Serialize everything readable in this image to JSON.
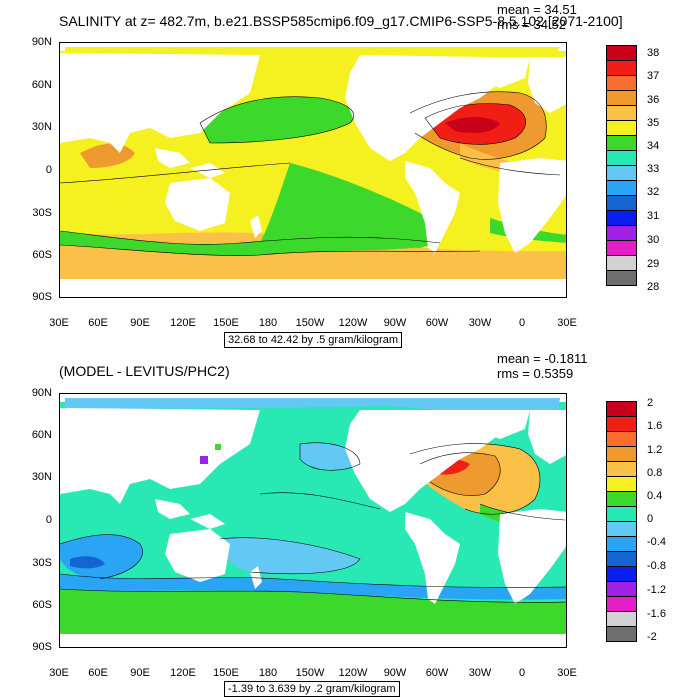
{
  "panel1": {
    "title": "SALINITY at z= 482.7m, b.e21.BSSP585cmip6.f09_g17.CMIP6-SSP5-8.5.102 [2071-2100]",
    "mean": "mean = 34.51",
    "rms": "rms = 34.52",
    "info": "32.68 to 42.42 by .5 gram/kilogram",
    "y_ticks": [
      "90N",
      "60N",
      "30N",
      "0",
      "30S",
      "60S",
      "90S"
    ],
    "x_ticks": [
      "30E",
      "60E",
      "90E",
      "120E",
      "150E",
      "180",
      "150W",
      "120W",
      "90W",
      "60W",
      "30W",
      "0",
      "30E"
    ],
    "colorbar": {
      "labels": [
        "38",
        "37",
        "36",
        "35",
        "34",
        "33",
        "32",
        "31",
        "30",
        "29",
        "28"
      ],
      "colors": [
        "#c8001a",
        "#f01e14",
        "#fa6e2d",
        "#ef9a2e",
        "#fac048",
        "#f5f020",
        "#3cd82b",
        "#28e8b4",
        "#64c8f5",
        "#2aa5f5",
        "#1464d2",
        "#0a1ef0",
        "#a020e6",
        "#e61ec8",
        "#d2d2d2",
        "#6e6e6e"
      ]
    }
  },
  "panel2": {
    "title": "(MODEL - LEVITUS/PHC2)",
    "mean": "mean = -0.1811",
    "rms": "rms = 0.5359",
    "info": "-1.39 to 3.639 by .2 gram/kilogram",
    "y_ticks": [
      "90N",
      "60N",
      "30N",
      "0",
      "30S",
      "60S",
      "90S"
    ],
    "x_ticks": [
      "30E",
      "60E",
      "90E",
      "120E",
      "150E",
      "180",
      "150W",
      "120W",
      "90W",
      "60W",
      "30W",
      "0",
      "30E"
    ],
    "colorbar": {
      "labels": [
        "2",
        "1.6",
        "1.2",
        "0.8",
        "0.4",
        "0",
        "-0.4",
        "-0.8",
        "-1.2",
        "-1.6",
        "-2"
      ],
      "colors": [
        "#c8001a",
        "#f01e14",
        "#fa6e2d",
        "#ef9a2e",
        "#fac048",
        "#f5f020",
        "#3cd82b",
        "#28e8b4",
        "#64c8f5",
        "#2aa5f5",
        "#1464d2",
        "#0a1ef0",
        "#a020e6",
        "#e61ec8",
        "#d2d2d2",
        "#6e6e6e"
      ]
    }
  }
}
